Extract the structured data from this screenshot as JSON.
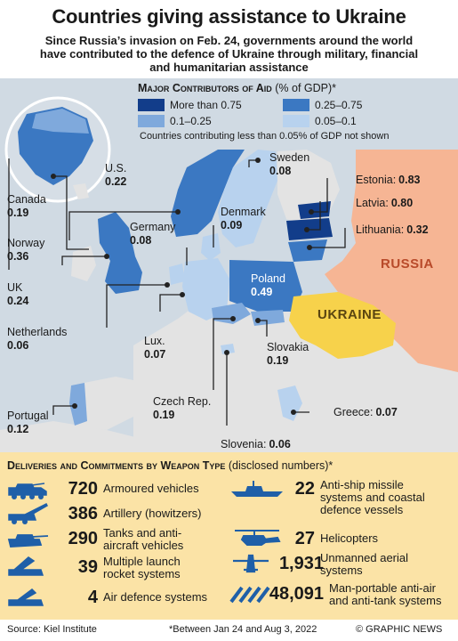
{
  "title": "Countries giving assistance to Ukraine",
  "subtitle": "Since Russia’s invasion on Feb. 24, governments around the world have contributed to the defence of Ukraine through military, financial and humanitarian assistance",
  "legend": {
    "title_main": "Major Contributors of Aid",
    "title_sub": "(% of GDP)*",
    "items": [
      {
        "label": "More than 0.75",
        "color": "#123d8a"
      },
      {
        "label": "0.25–0.75",
        "color": "#3b78c2"
      },
      {
        "label": "0.1–0.25",
        "color": "#7fa9dc"
      },
      {
        "label": "0.05–0.1",
        "color": "#b8d2ee"
      }
    ],
    "note": "Countries contributing less than 0.05% of GDP not shown"
  },
  "countries": [
    {
      "name": "U.S.",
      "value": "0.22"
    },
    {
      "name": "Canada",
      "value": "0.19"
    },
    {
      "name": "Norway",
      "value": "0.36"
    },
    {
      "name": "UK",
      "value": "0.24"
    },
    {
      "name": "Netherlands",
      "value": "0.06"
    },
    {
      "name": "Portugal",
      "value": "0.12"
    },
    {
      "name": "Sweden",
      "value": "0.08"
    },
    {
      "name": "Germany",
      "value": "0.08"
    },
    {
      "name": "Denmark",
      "value": "0.09"
    },
    {
      "name": "Poland",
      "value": "0.49"
    },
    {
      "name": "Lux.",
      "value": "0.07"
    },
    {
      "name": "Slovakia",
      "value": "0.19"
    },
    {
      "name": "Czech Rep.",
      "value": "0.19"
    },
    {
      "name": "Slovenia:",
      "value": "0.06"
    },
    {
      "name": "Greece:",
      "value": "0.07"
    },
    {
      "name": "Estonia:",
      "value": "0.83"
    },
    {
      "name": "Latvia:",
      "value": "0.80"
    },
    {
      "name": "Lithuania:",
      "value": "0.32"
    }
  ],
  "regions": {
    "russia": "RUSSIA",
    "ukraine": "UKRAINE"
  },
  "colors": {
    "sea": "#d0dae3",
    "land": "#e3e3e3",
    "russia": "#f6b594",
    "ukraine": "#f7d24b",
    "panel": "#fbe3a6",
    "icon": "#1f5fa8"
  },
  "weapons": {
    "title_main": "Deliveries and Commitments by Weapon Type",
    "title_sub": "(disclosed numbers)*",
    "items": [
      {
        "icon": "armoured-vehicle-icon",
        "number": "720",
        "label": [
          "Armoured vehicles"
        ]
      },
      {
        "icon": "howitzer-icon",
        "number": "386",
        "label": [
          "Artillery (howitzers)"
        ]
      },
      {
        "icon": "tank-icon",
        "number": "290",
        "label": [
          "Tanks and anti-",
          "aircraft vehicles"
        ]
      },
      {
        "icon": "rocket-launcher-icon",
        "number": "39",
        "label": [
          "Multiple launch",
          "rocket systems"
        ]
      },
      {
        "icon": "air-defence-icon",
        "number": "4",
        "label": [
          "Air defence systems"
        ]
      },
      {
        "icon": "warship-icon",
        "number": "22",
        "label": [
          "Anti-ship missile",
          "systems and coastal",
          "defence vessels"
        ]
      },
      {
        "icon": "helicopter-icon",
        "number": "27",
        "label": [
          "Helicopters"
        ]
      },
      {
        "icon": "drone-icon",
        "number": "1,931",
        "label": [
          "Unmanned aerial",
          "systems"
        ]
      },
      {
        "icon": "missiles-icon",
        "number": "48,091",
        "label": [
          "Man-portable anti-air",
          "and anti-tank systems"
        ]
      }
    ]
  },
  "footer": {
    "source": "Source: Kiel Institute",
    "note": "*Between Jan 24 and Aug 3, 2022",
    "credit": "© GRAPHIC NEWS"
  }
}
